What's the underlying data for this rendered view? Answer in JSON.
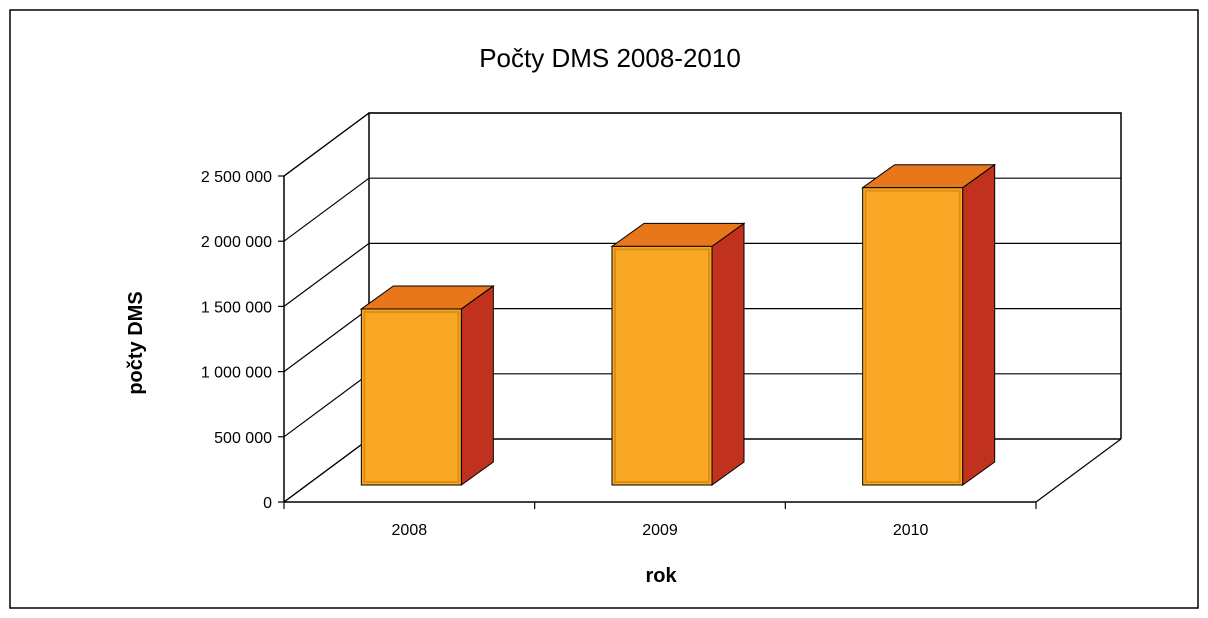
{
  "chart_data": {
    "type": "bar",
    "title": "Počty DMS 2008-2010",
    "xlabel": "rok",
    "ylabel": "počty DMS",
    "categories": [
      "2008",
      "2009",
      "2010"
    ],
    "values": [
      1350000,
      1830000,
      2280000
    ],
    "ylim": [
      0,
      2500000
    ],
    "yticks": [
      {
        "value": 0,
        "label": "0"
      },
      {
        "value": 500000,
        "label": "500 000"
      },
      {
        "value": 1000000,
        "label": "1 000 000"
      },
      {
        "value": 1500000,
        "label": "1 500 000"
      },
      {
        "value": 2000000,
        "label": "2 000 000"
      },
      {
        "value": 2500000,
        "label": "2 500 000"
      }
    ],
    "grid": true,
    "legend": "none",
    "three_d": true,
    "colors": {
      "bar_front": "#F9A825",
      "bar_front_edge": "#E08E10",
      "bar_top": "#E8761A",
      "bar_side": "#C0321E",
      "grid": "#000000",
      "border": "#000000"
    }
  }
}
